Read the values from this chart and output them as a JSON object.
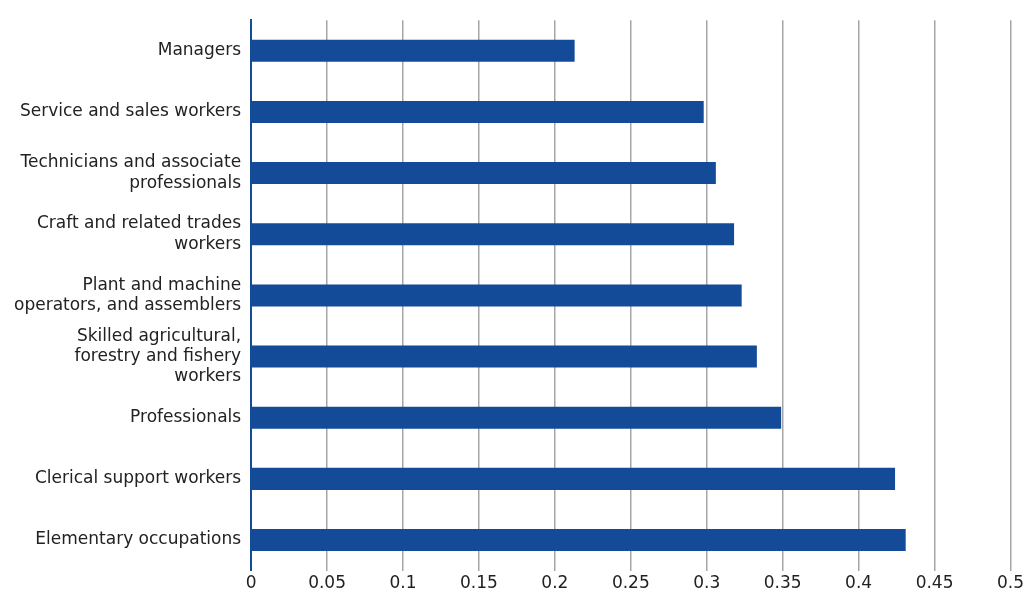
{
  "chart_data": {
    "type": "bar",
    "orientation": "horizontal",
    "categories": [
      "Managers",
      "Service and sales workers",
      "Technicians and associate professionals",
      "Craft and related trades workers",
      "Plant and machine operators, and assemblers",
      "Skilled agricultural, forestry and fishery workers",
      "Professionals",
      "Clerical support workers",
      "Elementary occupations"
    ],
    "values": [
      0.213,
      0.298,
      0.306,
      0.318,
      0.323,
      0.333,
      0.349,
      0.424,
      0.431
    ],
    "color": "#134b99",
    "xlim": [
      0,
      0.5
    ],
    "xticks": [
      0,
      0.05,
      0.1,
      0.15,
      0.2,
      0.25,
      0.3,
      0.35,
      0.4,
      0.45,
      0.5
    ],
    "grid": "x"
  }
}
